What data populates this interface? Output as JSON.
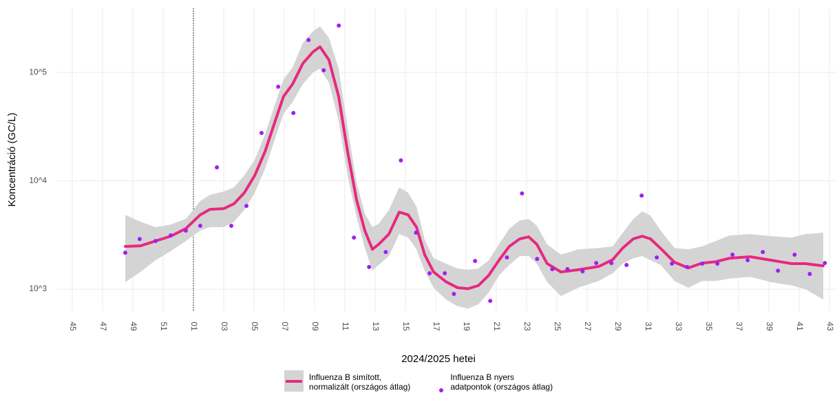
{
  "chart_data": {
    "type": "line",
    "x_label": "2024/2025 hetei",
    "y_label": "Koncentráció (GC/L)",
    "log_y": true,
    "grid": true,
    "legend": "bottom",
    "vline": 8,
    "xlim": [
      -1,
      50.5
    ],
    "xticks": [
      {
        "value": 0,
        "label": "45"
      },
      {
        "value": 2,
        "label": "47"
      },
      {
        "value": 4,
        "label": "49"
      },
      {
        "value": 6,
        "label": "51"
      },
      {
        "value": 8,
        "label": "01"
      },
      {
        "value": 10,
        "label": "03"
      },
      {
        "value": 12,
        "label": "05"
      },
      {
        "value": 14,
        "label": "07"
      },
      {
        "value": 16,
        "label": "09"
      },
      {
        "value": 18,
        "label": "11"
      },
      {
        "value": 20,
        "label": "13"
      },
      {
        "value": 22,
        "label": "15"
      },
      {
        "value": 24,
        "label": "17"
      },
      {
        "value": 26,
        "label": "19"
      },
      {
        "value": 28,
        "label": "21"
      },
      {
        "value": 30,
        "label": "23"
      },
      {
        "value": 32,
        "label": "25"
      },
      {
        "value": 34,
        "label": "27"
      },
      {
        "value": 36,
        "label": "29"
      },
      {
        "value": 38,
        "label": "31"
      },
      {
        "value": 40,
        "label": "33"
      },
      {
        "value": 42,
        "label": "35"
      },
      {
        "value": 44,
        "label": "37"
      },
      {
        "value": 46,
        "label": "39"
      },
      {
        "value": 48,
        "label": "41"
      },
      {
        "value": 50,
        "label": "43"
      }
    ],
    "ylim": [
      627,
      390000
    ],
    "yticks": [
      {
        "value": 1000,
        "label": "10^3"
      },
      {
        "value": 10000,
        "label": "10^4"
      },
      {
        "value": 100000,
        "label": "10^5"
      }
    ],
    "series": [
      {
        "name": "Influenza B simított,\n normalizált (országos átlag)",
        "type": "line",
        "color": "#e8287f",
        "band_color": "#d4d4d4",
        "x": [
          3.5,
          4.5,
          5.5,
          6.5,
          7.5,
          8.45,
          9.09,
          10,
          10.68,
          11.36,
          12.05,
          12.73,
          13.41,
          13.95,
          14.55,
          15.23,
          15.91,
          16.36,
          16.95,
          17.59,
          18.18,
          18.77,
          19.32,
          19.82,
          20.23,
          20.91,
          21.59,
          22.18,
          22.73,
          23.27,
          23.86,
          24.68,
          25.45,
          26.14,
          26.82,
          27.5,
          28.18,
          28.86,
          29.55,
          30.14,
          30.68,
          31.36,
          32.27,
          33.41,
          34.77,
          35.68,
          36.36,
          37.05,
          37.64,
          38.18,
          38.86,
          39.77,
          40.68,
          41.59,
          42.5,
          43.41,
          44.77,
          46.14,
          47.5,
          48.41,
          49.59
        ],
        "values": [
          2480,
          2510,
          2780,
          3080,
          3620,
          4850,
          5450,
          5530,
          6130,
          7740,
          11200,
          18600,
          35900,
          59900,
          78000,
          121000,
          155000,
          172000,
          130000,
          59900,
          18600,
          6690,
          3470,
          2330,
          2590,
          3220,
          5140,
          4850,
          3730,
          2080,
          1440,
          1170,
          1030,
          1010,
          1080,
          1340,
          1850,
          2480,
          2910,
          3040,
          2590,
          1720,
          1440,
          1510,
          1620,
          1870,
          2400,
          2910,
          3080,
          2910,
          2370,
          1770,
          1570,
          1740,
          1790,
          1930,
          1990,
          1850,
          1720,
          1720,
          1640
        ],
        "upper": [
          4850,
          4190,
          3730,
          3950,
          4440,
          6500,
          7410,
          7970,
          8700,
          11200,
          15600,
          26800,
          51800,
          86400,
          111000,
          187000,
          240000,
          266000,
          208000,
          108000,
          31000,
          9640,
          4990,
          3730,
          4010,
          5370,
          8700,
          7740,
          5780,
          2870,
          1930,
          1720,
          1550,
          1510,
          1550,
          1850,
          2590,
          3620,
          4310,
          4440,
          3840,
          2590,
          2080,
          2330,
          2400,
          2480,
          3320,
          4440,
          5220,
          4780,
          3470,
          2400,
          2330,
          2480,
          2780,
          3130,
          3220,
          3080,
          2990,
          3220,
          3320
        ],
        "lower": [
          1160,
          1440,
          1850,
          2240,
          2780,
          3470,
          3730,
          3730,
          4190,
          5370,
          7740,
          12900,
          24900,
          41600,
          53300,
          78000,
          100000,
          108000,
          80300,
          35900,
          11200,
          4640,
          2400,
          1480,
          1670,
          2020,
          3220,
          2990,
          2330,
          1480,
          1030,
          803,
          694,
          664,
          725,
          930,
          1340,
          1670,
          2020,
          2020,
          1720,
          1160,
          864,
          1030,
          1190,
          1400,
          1720,
          1930,
          2020,
          1850,
          1670,
          1190,
          1030,
          1190,
          1190,
          1250,
          1300,
          1160,
          1080,
          1000,
          803
        ]
      },
      {
        "name": "Influenza B nyers\n adatpontok (országos átlag)",
        "type": "scatter",
        "color": "#a020f0",
        "x": [
          3.5,
          4.45,
          5.5,
          6.5,
          7.5,
          8.45,
          9.55,
          10.5,
          11.5,
          12.5,
          13.6,
          14.6,
          15.6,
          16.6,
          17.6,
          18.6,
          19.6,
          20.7,
          21.7,
          22.7,
          23.6,
          24.6,
          25.2,
          26.6,
          27.6,
          28.7,
          29.7,
          30.7,
          31.7,
          32.7,
          33.7,
          34.6,
          35.6,
          36.6,
          37.6,
          38.6,
          39.6,
          40.6,
          41.6,
          42.6,
          43.6,
          44.6,
          45.6,
          46.6,
          47.7,
          48.7,
          49.7
        ],
        "values": [
          2170,
          2900,
          2780,
          3130,
          3470,
          3840,
          13300,
          3840,
          5860,
          27600,
          73600,
          42200,
          198700,
          104500,
          270000,
          2990,
          1600,
          2200,
          15400,
          3320,
          1400,
          1400,
          903,
          1820,
          780,
          1960,
          7640,
          1900,
          1530,
          1530,
          1460,
          1740,
          1740,
          1670,
          7300,
          1960,
          1720,
          1600,
          1720,
          1720,
          2080,
          1850,
          2200,
          1480,
          2080,
          1380,
          1740
        ]
      }
    ]
  }
}
